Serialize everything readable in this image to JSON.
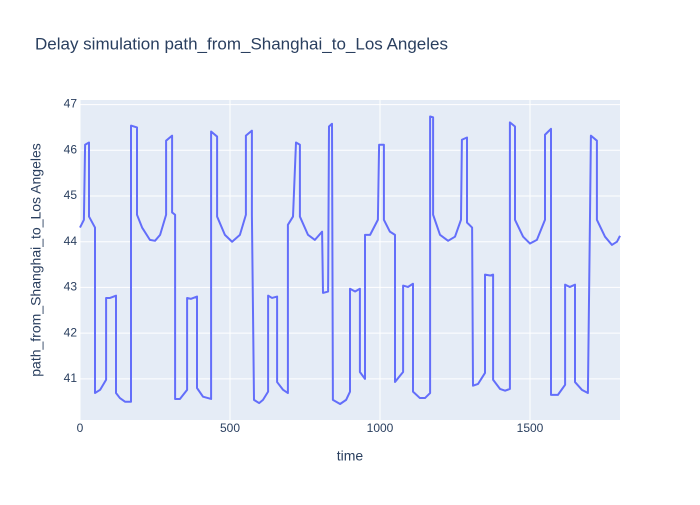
{
  "chart_data": {
    "type": "line",
    "title": "Delay simulation path_from_Shanghai_to_Los Angeles",
    "x_label": "time",
    "y_label": "path_from_Shanghai_to_Los Angeles",
    "xlim": [
      0,
      1800
    ],
    "ylim": [
      40.1,
      47.1
    ],
    "xticks": [
      0,
      500,
      1000,
      1500
    ],
    "yticks": [
      41,
      42,
      43,
      44,
      45,
      46,
      47
    ],
    "grid": true,
    "series": [
      {
        "color": "#636efa",
        "x": [
          0,
          13,
          17,
          30,
          30,
          50,
          50,
          67,
          87,
          87,
          100,
          120,
          120,
          133,
          150,
          170,
          170,
          190,
          190,
          207,
          233,
          250,
          267,
          287,
          287,
          307,
          307,
          317,
          317,
          333,
          357,
          357,
          370,
          390,
          390,
          410,
          437,
          437,
          457,
          457,
          483,
          507,
          533,
          553,
          553,
          573,
          573,
          580,
          597,
          610,
          627,
          627,
          640,
          657,
          657,
          677,
          693,
          693,
          710,
          720,
          733,
          733,
          760,
          783,
          807,
          810,
          827,
          830,
          840,
          843,
          867,
          887,
          900,
          900,
          917,
          933,
          933,
          950,
          950,
          967,
          993,
          997,
          1013,
          1013,
          1033,
          1050,
          1050,
          1067,
          1077,
          1077,
          1093,
          1110,
          1110,
          1133,
          1150,
          1167,
          1167,
          1177,
          1177,
          1200,
          1227,
          1250,
          1270,
          1273,
          1290,
          1290,
          1307,
          1310,
          1327,
          1350,
          1350,
          1367,
          1377,
          1377,
          1400,
          1417,
          1433,
          1433,
          1450,
          1450,
          1477,
          1500,
          1523,
          1550,
          1550,
          1570,
          1570,
          1593,
          1617,
          1617,
          1633,
          1650,
          1650,
          1673,
          1693,
          1700,
          1703,
          1723,
          1723,
          1750,
          1773,
          1790,
          1800
        ],
        "values": [
          44.31,
          44.48,
          46.12,
          46.17,
          44.55,
          44.31,
          40.69,
          40.76,
          40.98,
          42.77,
          42.77,
          42.82,
          40.69,
          40.58,
          40.5,
          40.5,
          46.54,
          46.5,
          44.59,
          44.31,
          44.04,
          44.02,
          44.15,
          44.59,
          46.21,
          46.32,
          44.64,
          44.59,
          40.56,
          40.56,
          40.76,
          42.77,
          42.75,
          42.8,
          40.8,
          40.61,
          40.56,
          46.41,
          46.3,
          44.55,
          44.15,
          44.0,
          44.15,
          44.59,
          46.32,
          46.43,
          44.59,
          40.54,
          40.47,
          40.54,
          40.72,
          42.82,
          42.77,
          42.8,
          40.93,
          40.76,
          40.69,
          44.37,
          44.55,
          46.17,
          46.12,
          44.55,
          44.15,
          44.04,
          44.22,
          42.88,
          42.91,
          46.52,
          46.58,
          40.54,
          40.45,
          40.54,
          40.72,
          42.97,
          42.91,
          42.97,
          41.15,
          41.0,
          44.15,
          44.15,
          44.48,
          46.12,
          46.12,
          44.48,
          44.22,
          44.15,
          40.93,
          41.07,
          41.15,
          43.04,
          43.01,
          43.08,
          40.72,
          40.58,
          40.58,
          40.69,
          46.74,
          46.72,
          44.59,
          44.15,
          44.02,
          44.11,
          44.48,
          46.23,
          46.28,
          44.42,
          44.31,
          40.85,
          40.89,
          41.13,
          43.28,
          43.26,
          43.28,
          40.98,
          40.78,
          40.74,
          40.78,
          46.61,
          46.52,
          44.48,
          44.11,
          43.96,
          44.04,
          44.48,
          46.34,
          46.47,
          40.65,
          40.65,
          40.87,
          43.06,
          43.01,
          43.06,
          40.93,
          40.76,
          40.69,
          44.55,
          46.32,
          46.21,
          44.48,
          44.11,
          43.93,
          44.0,
          44.13
        ]
      }
    ]
  }
}
